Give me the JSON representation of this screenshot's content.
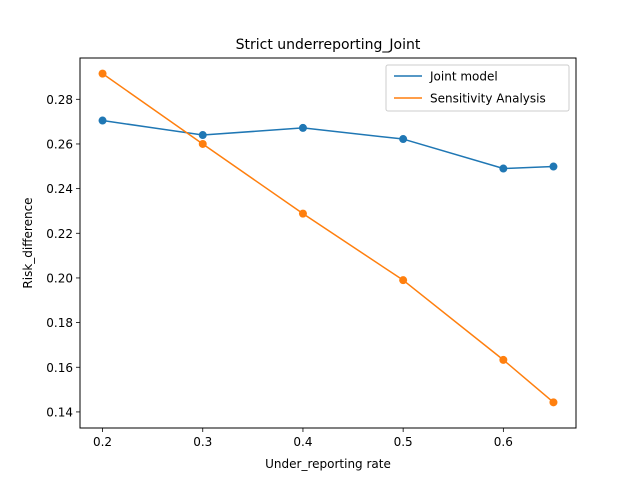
{
  "chart_data": {
    "type": "line",
    "title": "Strict underreporting_Joint",
    "xlabel": "Under_reporting rate",
    "ylabel": "Risk_difference",
    "xlim": [
      0.1775,
      0.6725
    ],
    "ylim": [
      0.1328,
      0.2985
    ],
    "xticks": [
      0.2,
      0.3,
      0.4,
      0.5,
      0.6
    ],
    "yticks": [
      0.14,
      0.16,
      0.18,
      0.2,
      0.22,
      0.24,
      0.26,
      0.28
    ],
    "x": [
      0.2,
      0.3,
      0.4,
      0.5,
      0.6,
      0.65
    ],
    "legend_position": "top-right",
    "grid": false,
    "series": [
      {
        "name": "Joint model",
        "color": "#1f77b4",
        "values": [
          0.2705,
          0.264,
          0.2672,
          0.2622,
          0.249,
          0.2499
        ]
      },
      {
        "name": "Sensitivity Analysis",
        "color": "#ff7f0e",
        "values": [
          0.2915,
          0.26,
          0.2288,
          0.199,
          0.1633,
          0.1443
        ]
      }
    ]
  }
}
